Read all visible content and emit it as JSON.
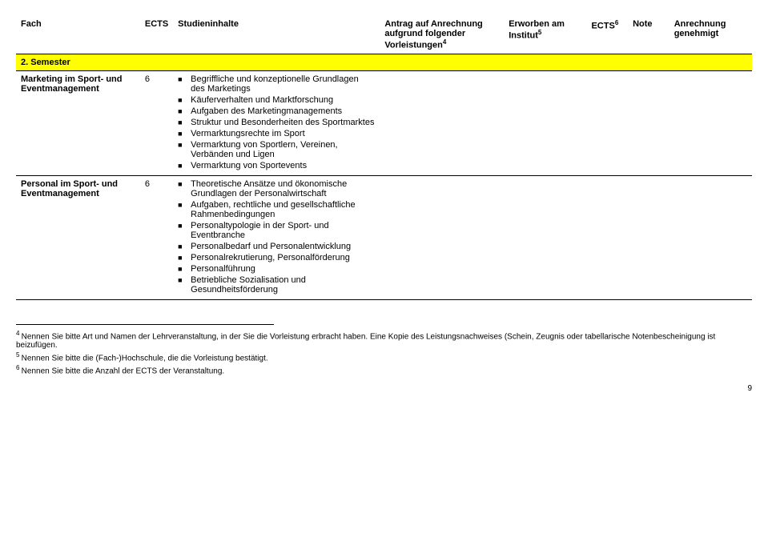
{
  "headers": {
    "fach": "Fach",
    "ects": "ECTS",
    "studien": "Studieninhalte",
    "antrag": "Antrag auf Anrechnung aufgrund folgender Vorleistungen",
    "antrag_sup": "4",
    "erworben": "Erworben am Institut",
    "erworben_sup": "5",
    "ects2": "ECTS",
    "ects2_sup": "6",
    "note": "Note",
    "anrechnung": "Anrechnung genehmigt"
  },
  "semester_label": "2. Semester",
  "rows": [
    {
      "fach": "Marketing im Sport- und Eventmanagement",
      "ects": "6",
      "items": [
        "Begriffliche und konzeptionelle Grundlagen des Marketings",
        "Käuferverhalten und Marktforschung",
        "Aufgaben des Marketingmanagements",
        "Struktur und Besonderheiten des Sportmarktes",
        "Vermarktungsrechte im Sport",
        "Vermarktung von Sportlern, Vereinen, Verbänden und Ligen",
        "Vermarktung von Sportevents"
      ]
    },
    {
      "fach": "Personal im Sport- und Eventmanagement",
      "ects": "6",
      "items": [
        "Theoretische Ansätze und ökonomische Grundlagen der Personalwirtschaft",
        "Aufgaben, rechtliche und gesellschaftliche Rahmenbedingungen",
        "Personaltypologie in der Sport- und Eventbranche",
        "Personalbedarf und Personalentwicklung",
        "Personalrekrutierung, Personalförderung",
        "Personalführung",
        "Betriebliche Sozialisation und Gesundheitsförderung"
      ]
    }
  ],
  "footnotes": {
    "f4a": "Nennen Sie bitte Art und Namen der Lehrveranstaltung, in der Sie die Vorleistung erbracht haben. Eine Kopie des Leistungsnachweises (Schein, Zeugnis oder tabellarische Notenbescheinigung ist beizufügen.",
    "f5": "Nennen Sie bitte die (Fach-)Hochschule, die die Vorleistung bestätigt.",
    "f6": "Nennen Sie bitte die Anzahl der ECTS der Veranstaltung."
  },
  "page_number": "9"
}
